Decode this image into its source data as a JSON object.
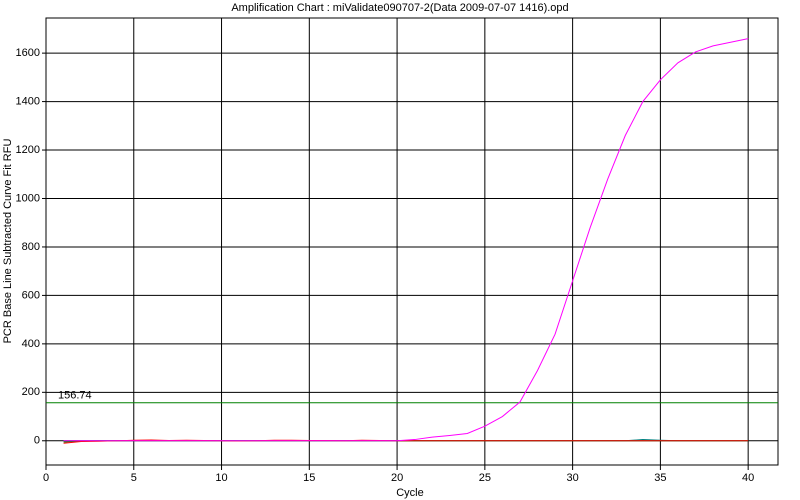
{
  "chart_data": {
    "type": "line",
    "title": "Amplification Chart : miValidate090707-2(Data 2009-07-07 1416).opd",
    "xlabel": "Cycle",
    "ylabel": "PCR Base Line Subtracted Curve Fit RFU",
    "x": [
      1,
      2,
      3,
      4,
      5,
      6,
      7,
      8,
      9,
      10,
      11,
      12,
      13,
      14,
      15,
      16,
      17,
      18,
      19,
      20,
      21,
      22,
      23,
      24,
      25,
      26,
      27,
      28,
      29,
      30,
      31,
      32,
      33,
      34,
      35,
      36,
      37,
      38,
      39,
      40
    ],
    "series": [
      {
        "color": "#ff00ff",
        "values": [
          0,
          0,
          0,
          0,
          0,
          0,
          0,
          0,
          0,
          0,
          0,
          0,
          0,
          0,
          0,
          0,
          0,
          0,
          0,
          0,
          5,
          15,
          22,
          30,
          60,
          100,
          160,
          290,
          440,
          660,
          880,
          1080,
          1260,
          1400,
          1490,
          1560,
          1605,
          1630,
          1645,
          1660
        ]
      },
      {
        "color": "#ff0000",
        "values": [
          -10,
          -3,
          -2,
          0,
          2,
          3,
          1,
          2,
          1,
          0,
          -1,
          0,
          2,
          2,
          1,
          1,
          0,
          2,
          1,
          0,
          0,
          0,
          0,
          0,
          0,
          0,
          0,
          0,
          0,
          0,
          0,
          0,
          0,
          0,
          0,
          0,
          0,
          0,
          0,
          0
        ]
      },
      {
        "color": "#008000",
        "values": [
          -5,
          -2,
          0,
          0,
          0,
          0,
          0,
          0,
          0,
          0,
          0,
          0,
          0,
          0,
          0,
          0,
          0,
          0,
          0,
          0,
          0,
          0,
          0,
          0,
          0,
          0,
          0,
          0,
          0,
          0,
          0,
          0,
          0,
          0,
          0,
          0,
          0,
          0,
          0,
          0
        ]
      },
      {
        "color": "#008080",
        "values": [
          0,
          0,
          0,
          0,
          0,
          0,
          0,
          0,
          0,
          0,
          0,
          0,
          0,
          0,
          0,
          0,
          0,
          0,
          0,
          0,
          0,
          0,
          0,
          0,
          0,
          0,
          0,
          0,
          0,
          0,
          0,
          0,
          0,
          5,
          2,
          0,
          0,
          0,
          0,
          0
        ]
      }
    ],
    "threshold": 156.74,
    "threshold_color": "#008000",
    "xlim": [
      0,
      41.7
    ],
    "xticks": [
      0,
      5,
      10,
      15,
      20,
      25,
      30,
      35,
      40
    ],
    "ylim": [
      -100,
      1745
    ],
    "yticks": [
      0,
      200,
      400,
      600,
      800,
      1000,
      1200,
      1400,
      1600
    ],
    "grid": true
  }
}
